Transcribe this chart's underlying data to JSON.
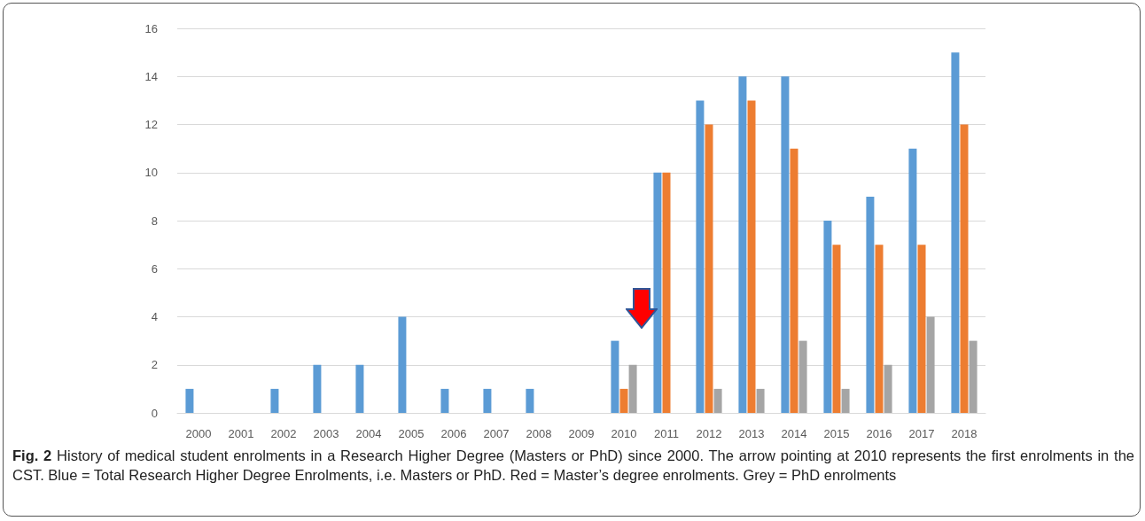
{
  "chart_data": {
    "type": "bar",
    "categories": [
      "2000",
      "2001",
      "2002",
      "2003",
      "2004",
      "2005",
      "2006",
      "2007",
      "2008",
      "2009",
      "2010",
      "2011",
      "2012",
      "2013",
      "2014",
      "2015",
      "2016",
      "2017",
      "2018"
    ],
    "series": [
      {
        "color": "#5b9bd5",
        "values": [
          1,
          0,
          1,
          2,
          2,
          4,
          1,
          1,
          1,
          0,
          3,
          10,
          13,
          14,
          14,
          8,
          9,
          11,
          15
        ]
      },
      {
        "color": "#ed7d31",
        "values": [
          0,
          0,
          0,
          0,
          0,
          0,
          0,
          0,
          0,
          0,
          1,
          10,
          12,
          13,
          11,
          7,
          7,
          7,
          12
        ]
      },
      {
        "color": "#a5a5a5",
        "values": [
          0,
          0,
          0,
          0,
          0,
          0,
          0,
          0,
          0,
          0,
          2,
          0,
          1,
          1,
          3,
          1,
          2,
          4,
          3
        ]
      }
    ],
    "ylim": [
      0,
      16
    ],
    "yticks": [
      0,
      2,
      4,
      6,
      8,
      10,
      12,
      14,
      16
    ],
    "grid": "y",
    "annotations": [
      "Fig. 2 History of medical student enrolments in a Research Higher Degree (Masters or PhD) since 2000. The arrow pointing at 2010 represents the first enrolments in the CST. Blue = Total Research Higher Degree Enrolments, i.e. Masters or PhD. Red = Master’s degree enrolments. Grey = PhD enrolments"
    ]
  }
}
